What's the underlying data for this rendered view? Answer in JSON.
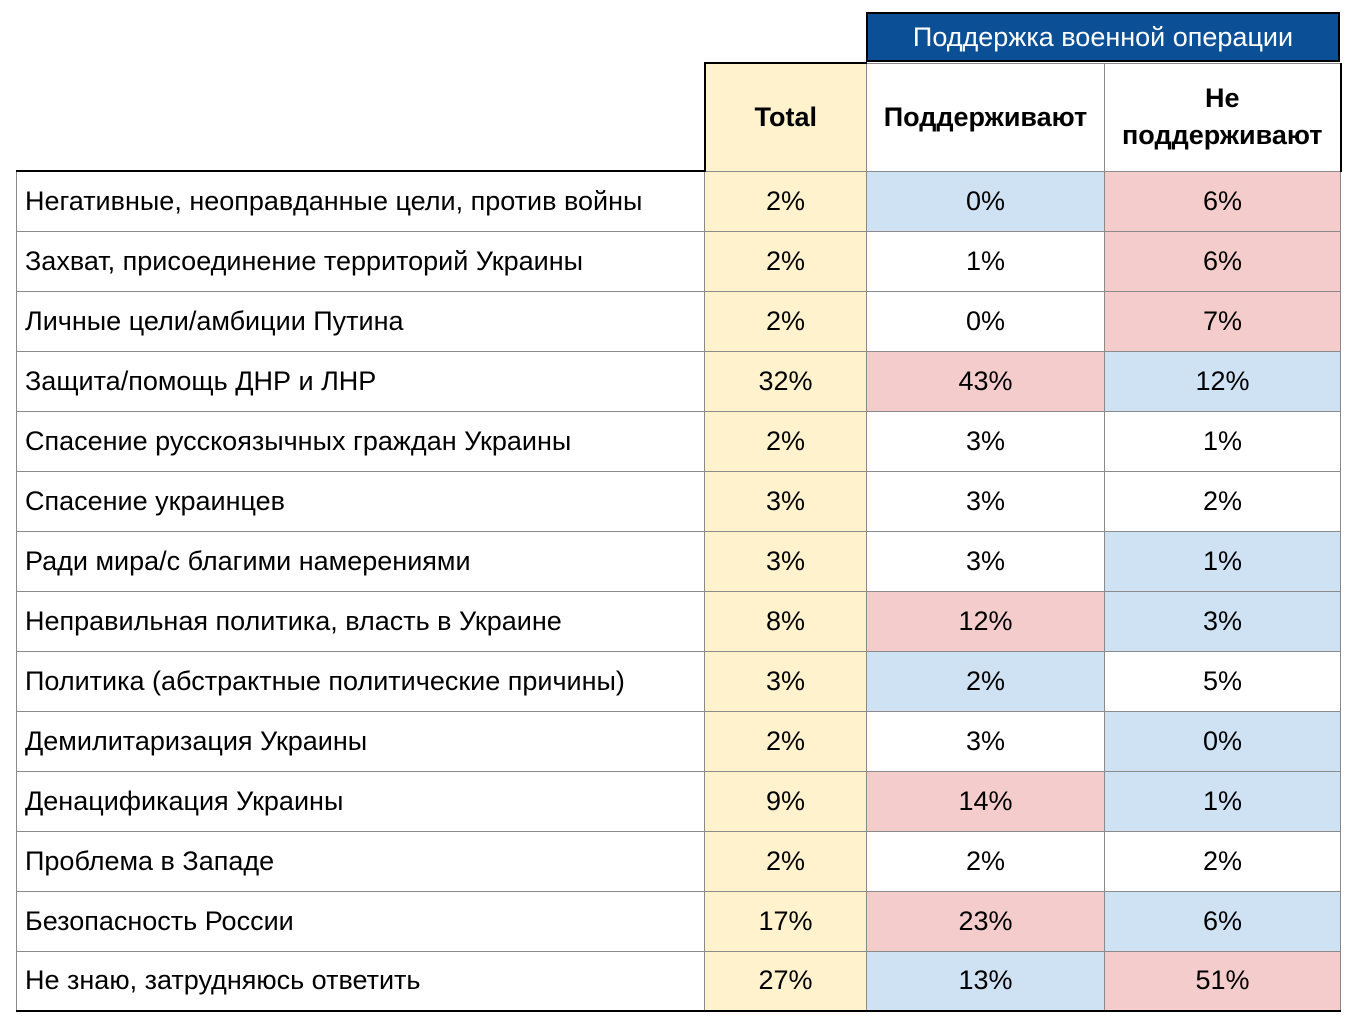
{
  "chart_data": {
    "type": "table",
    "group_header": "Поддержка военной операции",
    "columns": [
      "Total",
      "Поддерживают",
      "Не поддерживают"
    ],
    "highlight_colors": {
      "higher": "#f4cccc",
      "lower": "#cfe2f3",
      "total": "#fff2cc",
      "group_header": "#0b4f97"
    },
    "rows": [
      {
        "label": "Негативные, неоправданные цели, против войны",
        "total": "2%",
        "support": "0%",
        "not_support": "6%",
        "support_hl": "blue",
        "not_support_hl": "pink"
      },
      {
        "label": "Захват, присоединение территорий Украины",
        "total": "2%",
        "support": "1%",
        "not_support": "6%",
        "support_hl": "",
        "not_support_hl": "pink"
      },
      {
        "label": "Личные цели/амбиции Путина",
        "total": "2%",
        "support": "0%",
        "not_support": "7%",
        "support_hl": "",
        "not_support_hl": "pink"
      },
      {
        "label": "Защита/помощь ДНР и ЛНР",
        "total": "32%",
        "support": "43%",
        "not_support": "12%",
        "support_hl": "pink",
        "not_support_hl": "blue"
      },
      {
        "label": "Спасение русскоязычных граждан Украины",
        "total": "2%",
        "support": "3%",
        "not_support": "1%",
        "support_hl": "",
        "not_support_hl": ""
      },
      {
        "label": "Спасение украинцев",
        "total": "3%",
        "support": "3%",
        "not_support": "2%",
        "support_hl": "",
        "not_support_hl": ""
      },
      {
        "label": "Ради мира/с благими намерениями",
        "total": "3%",
        "support": "3%",
        "not_support": "1%",
        "support_hl": "",
        "not_support_hl": "blue"
      },
      {
        "label": "Неправильная политика, власть в Украине",
        "total": "8%",
        "support": "12%",
        "not_support": "3%",
        "support_hl": "pink",
        "not_support_hl": "blue"
      },
      {
        "label": "Политика (абстрактные политические причины)",
        "total": "3%",
        "support": "2%",
        "not_support": "5%",
        "support_hl": "blue",
        "not_support_hl": ""
      },
      {
        "label": "Демилитаризация Украины",
        "total": "2%",
        "support": "3%",
        "not_support": "0%",
        "support_hl": "",
        "not_support_hl": "blue"
      },
      {
        "label": "Денацификация Украины",
        "total": "9%",
        "support": "14%",
        "not_support": "1%",
        "support_hl": "pink",
        "not_support_hl": "blue"
      },
      {
        "label": "Проблема в Западе",
        "total": "2%",
        "support": "2%",
        "not_support": "2%",
        "support_hl": "",
        "not_support_hl": ""
      },
      {
        "label": "Безопасность России",
        "total": "17%",
        "support": "23%",
        "not_support": "6%",
        "support_hl": "pink",
        "not_support_hl": "blue"
      },
      {
        "label": "Не знаю, затрудняюсь ответить",
        "total": "27%",
        "support": "13%",
        "not_support": "51%",
        "support_hl": "blue",
        "not_support_hl": "pink"
      }
    ]
  }
}
